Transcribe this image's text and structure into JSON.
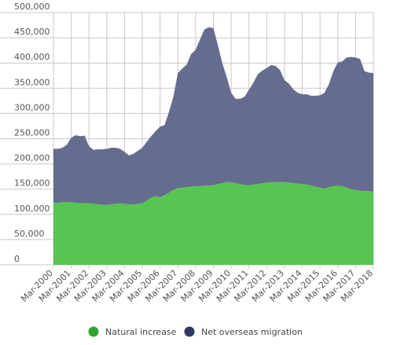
{
  "chart_data": {
    "type": "area",
    "stacked": true,
    "x_labels": [
      "Mar-2000",
      "Mar-2001",
      "Mar-2002",
      "Mar-2003",
      "Mar-2004",
      "Mar-2005",
      "Mar-2006",
      "Mar-2007",
      "Mar-2008",
      "Mar-2009",
      "Mar-2010",
      "Mar-2011",
      "Mar-2012",
      "Mar-2013",
      "Mar-2014",
      "Mar-2015",
      "Mar-2016",
      "Mar-2017",
      "Mar-2018"
    ],
    "quarters": [
      "Mar-2000",
      "Jun-2000",
      "Sep-2000",
      "Dec-2000",
      "Mar-2001",
      "Jun-2001",
      "Sep-2001",
      "Dec-2001",
      "Mar-2002",
      "Jun-2002",
      "Sep-2002",
      "Dec-2002",
      "Mar-2003",
      "Jun-2003",
      "Sep-2003",
      "Dec-2003",
      "Mar-2004",
      "Jun-2004",
      "Sep-2004",
      "Dec-2004",
      "Mar-2005",
      "Jun-2005",
      "Sep-2005",
      "Dec-2005",
      "Mar-2006",
      "Jun-2006",
      "Sep-2006",
      "Dec-2006",
      "Mar-2007",
      "Jun-2007",
      "Sep-2007",
      "Dec-2007",
      "Mar-2008",
      "Jun-2008",
      "Sep-2008",
      "Dec-2008",
      "Mar-2009",
      "Jun-2009",
      "Sep-2009",
      "Dec-2009",
      "Mar-2010",
      "Jun-2010",
      "Sep-2010",
      "Dec-2010",
      "Mar-2011",
      "Jun-2011",
      "Sep-2011",
      "Dec-2011",
      "Mar-2012",
      "Jun-2012",
      "Sep-2012",
      "Dec-2012",
      "Mar-2013",
      "Jun-2013",
      "Sep-2013",
      "Dec-2013",
      "Mar-2014",
      "Jun-2014",
      "Sep-2014",
      "Dec-2014",
      "Mar-2015",
      "Jun-2015",
      "Sep-2015",
      "Dec-2015",
      "Mar-2016",
      "Jun-2016",
      "Sep-2016",
      "Dec-2016",
      "Mar-2017",
      "Jun-2017",
      "Sep-2017",
      "Dec-2017",
      "Mar-2018"
    ],
    "series": [
      {
        "name": "Natural increase",
        "color": "#57c552",
        "values": [
          124000,
          123000,
          124000,
          125000,
          124000,
          123000,
          123000,
          122000,
          122000,
          121000,
          120000,
          119000,
          119000,
          120000,
          121000,
          122000,
          121000,
          120000,
          120000,
          121000,
          122000,
          128000,
          133000,
          136000,
          134000,
          138000,
          143000,
          149000,
          152000,
          153000,
          154000,
          155000,
          156000,
          156000,
          157000,
          157000,
          158000,
          160000,
          162000,
          164000,
          164000,
          162000,
          160000,
          158000,
          158000,
          159000,
          160000,
          162000,
          163000,
          164000,
          164000,
          164000,
          164000,
          163000,
          162000,
          161000,
          160000,
          159000,
          157000,
          155000,
          153000,
          151000,
          154000,
          156000,
          157000,
          156000,
          153000,
          150000,
          148000,
          147000,
          146000,
          146000,
          145000
        ]
      },
      {
        "name": "Net overseas migration",
        "color": "#656c8e",
        "values": [
          106000,
          107000,
          108000,
          113000,
          128000,
          134000,
          132000,
          134000,
          113000,
          107000,
          109000,
          110000,
          111000,
          112000,
          111000,
          108000,
          103000,
          97000,
          100000,
          105000,
          110000,
          116000,
          122000,
          129000,
          140000,
          139000,
          160000,
          185000,
          228000,
          236000,
          243000,
          263000,
          270000,
          291000,
          310000,
          314000,
          311000,
          276000,
          238000,
          208000,
          177000,
          167000,
          169000,
          175000,
          189000,
          202000,
          218000,
          223000,
          227000,
          232000,
          230000,
          222000,
          202000,
          196000,
          186000,
          180000,
          178000,
          179000,
          178000,
          180000,
          183000,
          190000,
          204000,
          228000,
          244000,
          247000,
          258000,
          262000,
          263000,
          261000,
          238000,
          235000,
          235000
        ]
      }
    ],
    "y_ticks": [
      "0",
      "50,000",
      "100,000",
      "150,000",
      "200,000",
      "250,000",
      "300,000",
      "350,000",
      "400,000",
      "450,000",
      "500,000"
    ],
    "ylim": [
      0,
      500000
    ],
    "grid": true,
    "legend_position": "bottom"
  }
}
